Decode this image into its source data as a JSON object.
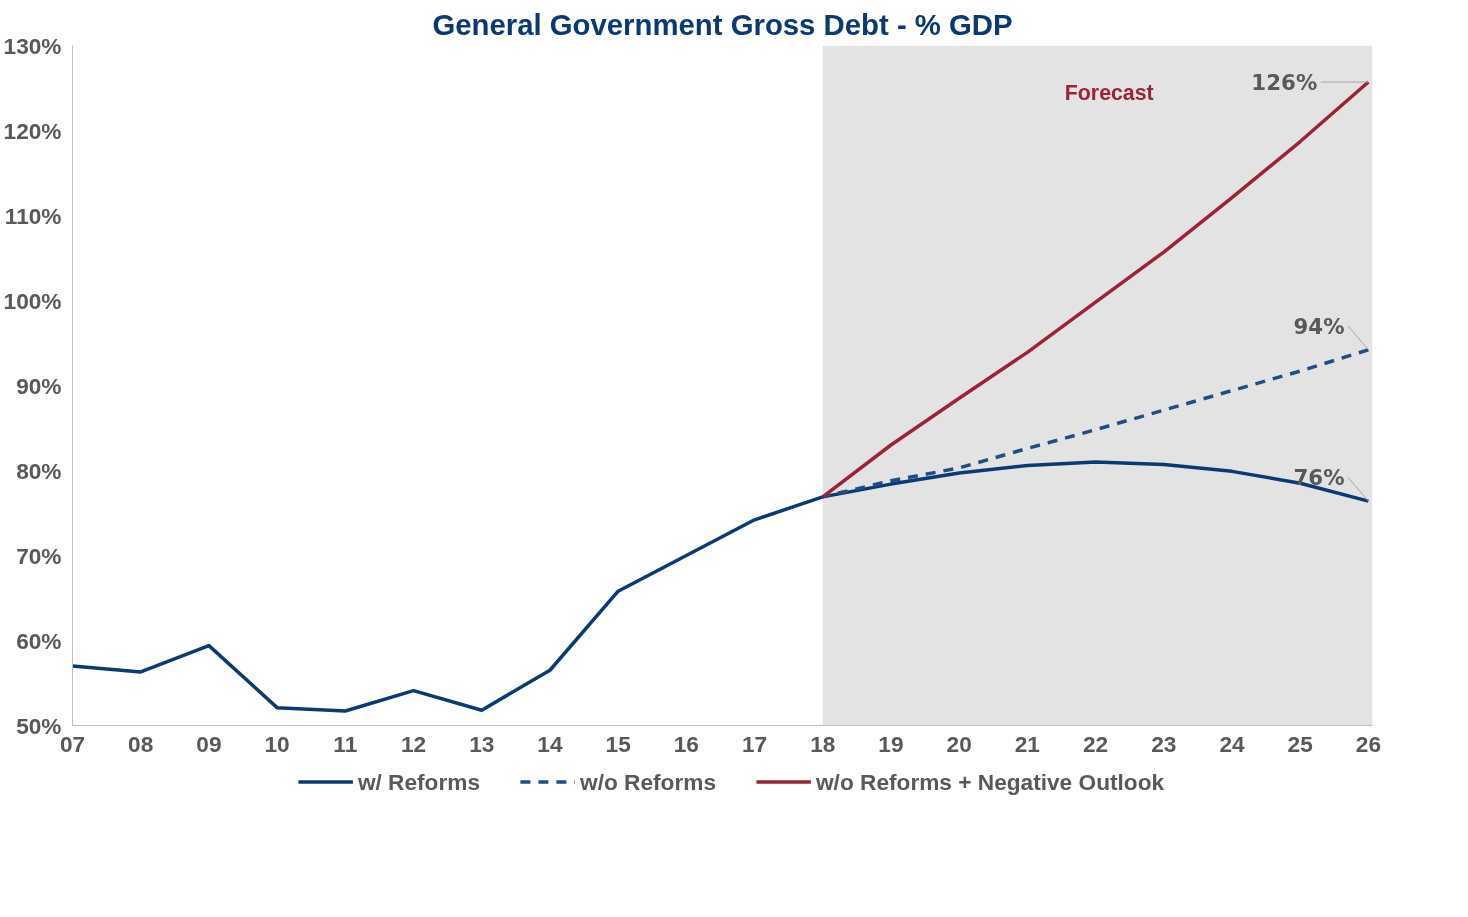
{
  "chart_data": {
    "type": "line",
    "title": "General Government Gross Debt - % GDP",
    "categories": [
      "07",
      "08",
      "09",
      "10",
      "11",
      "12",
      "13",
      "14",
      "15",
      "16",
      "17",
      "18",
      "19",
      "20",
      "21",
      "22",
      "23",
      "24",
      "25",
      "26"
    ],
    "series": [
      {
        "name": "w/ Reforms",
        "color": "#0b3a73",
        "line_style": "solid",
        "values": [
          57.0,
          56.3,
          59.4,
          52.1,
          51.7,
          54.1,
          51.8,
          56.5,
          65.8,
          70.0,
          74.2,
          76.9,
          78.4,
          79.7,
          80.6,
          81.0,
          80.7,
          79.9,
          78.5,
          76.4
        ]
      },
      {
        "name": "w/o Reforms",
        "color": "#1f4e85",
        "line_style": "dashed",
        "values": [
          null,
          null,
          null,
          null,
          null,
          null,
          null,
          null,
          null,
          null,
          null,
          76.9,
          78.8,
          80.3,
          82.6,
          84.8,
          87.1,
          89.4,
          91.7,
          94.2
        ]
      },
      {
        "name": "w/o Reforms + Negative Outlook",
        "color": "#9b2335",
        "line_style": "solid",
        "values": [
          null,
          null,
          null,
          null,
          null,
          null,
          null,
          null,
          null,
          null,
          null,
          76.9,
          83.0,
          88.5,
          93.9,
          99.8,
          105.7,
          112.1,
          118.7,
          125.7
        ]
      }
    ],
    "ylim": [
      50,
      130
    ],
    "yticks": [
      {
        "value": 50,
        "label": "50%"
      },
      {
        "value": 60,
        "label": "60%"
      },
      {
        "value": 70,
        "label": "70%"
      },
      {
        "value": 80,
        "label": "80%"
      },
      {
        "value": 90,
        "label": "90%"
      },
      {
        "value": 100,
        "label": "100%"
      },
      {
        "value": 110,
        "label": "110%"
      },
      {
        "value": 120,
        "label": "120%"
      },
      {
        "value": 130,
        "label": "130%"
      }
    ],
    "bands": [
      {
        "axis": "x",
        "from": "18",
        "to": "26",
        "label": "Forecast",
        "color": "#e3e3e3"
      }
    ],
    "annotations": [
      {
        "text": "126%",
        "x": "26",
        "y": 125.7
      },
      {
        "text": "94%",
        "x": "26",
        "y": 94.2
      },
      {
        "text": "76%",
        "x": "26",
        "y": 76.4
      }
    ],
    "grid": false,
    "legend": "bottom",
    "marker": "none"
  }
}
